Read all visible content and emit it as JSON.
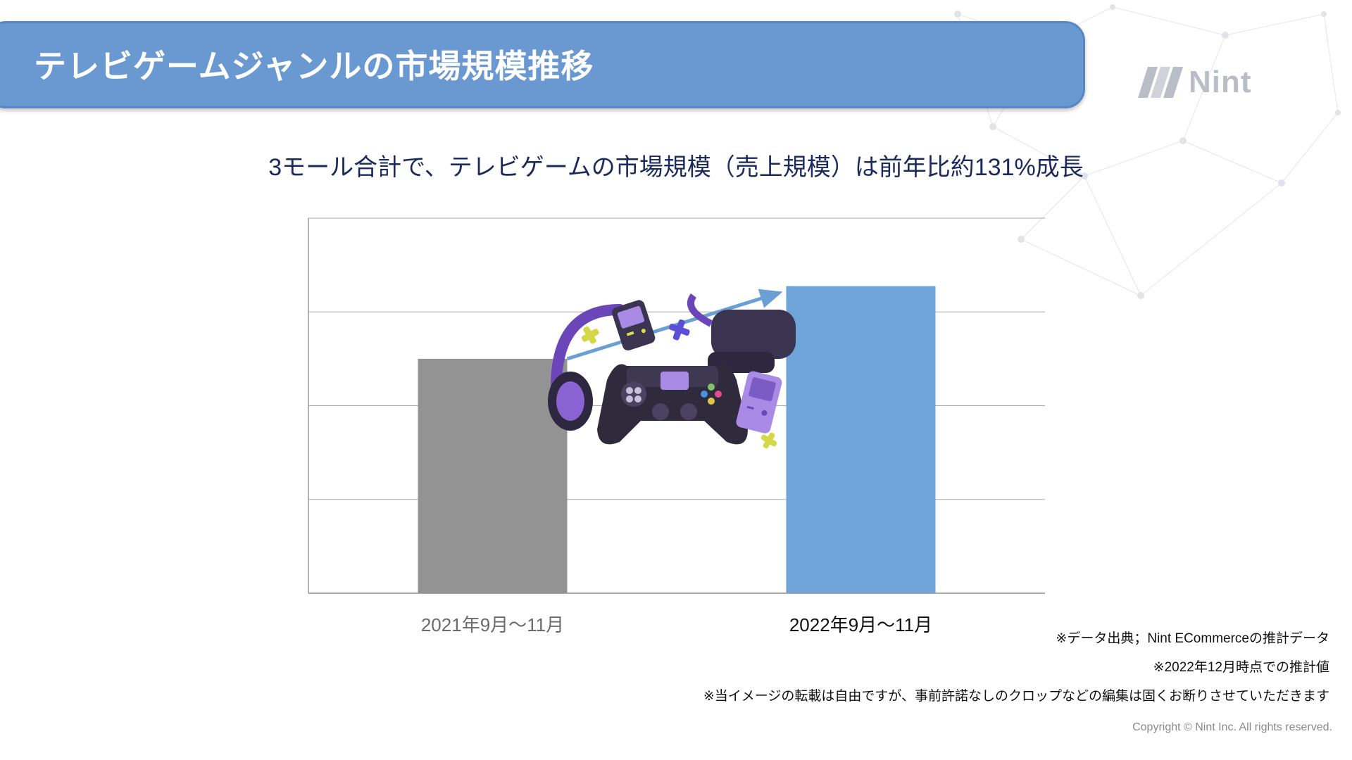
{
  "header": {
    "title": "テレビゲームジャンルの市場規模推移"
  },
  "logo": {
    "text": "Nint",
    "icon": "nint-logo-icon"
  },
  "subtitle": "3モール合計で、テレビゲームの市場規模（売上規模）は前年比約131%成長",
  "chart_data": {
    "type": "bar",
    "categories": [
      "2021年9月〜11月",
      "2022年9月〜11月"
    ],
    "values": [
      100,
      131
    ],
    "ylim": [
      0,
      160
    ],
    "gridlines": 4,
    "grid": true,
    "y_tick_labels_shown": false,
    "colors": [
      "#939393",
      "#6fa5d8"
    ],
    "category_label_colors": [
      "#6b6b6b",
      "#111111"
    ],
    "annotation": "growth-arrow",
    "arrow_color": "#6a9fd4"
  },
  "illustration": {
    "icon": "game-controller-illustration-icon"
  },
  "notes": [
    "※データ出典；Nint ECommerceの推計データ",
    "※2022年12月時点での推計値",
    "※当イメージの転載は自由ですが、事前許諾なしのクロップなどの編集は固くお断りさせていただきます"
  ],
  "copyright": "Copyright © Nint Inc. All rights reserved."
}
